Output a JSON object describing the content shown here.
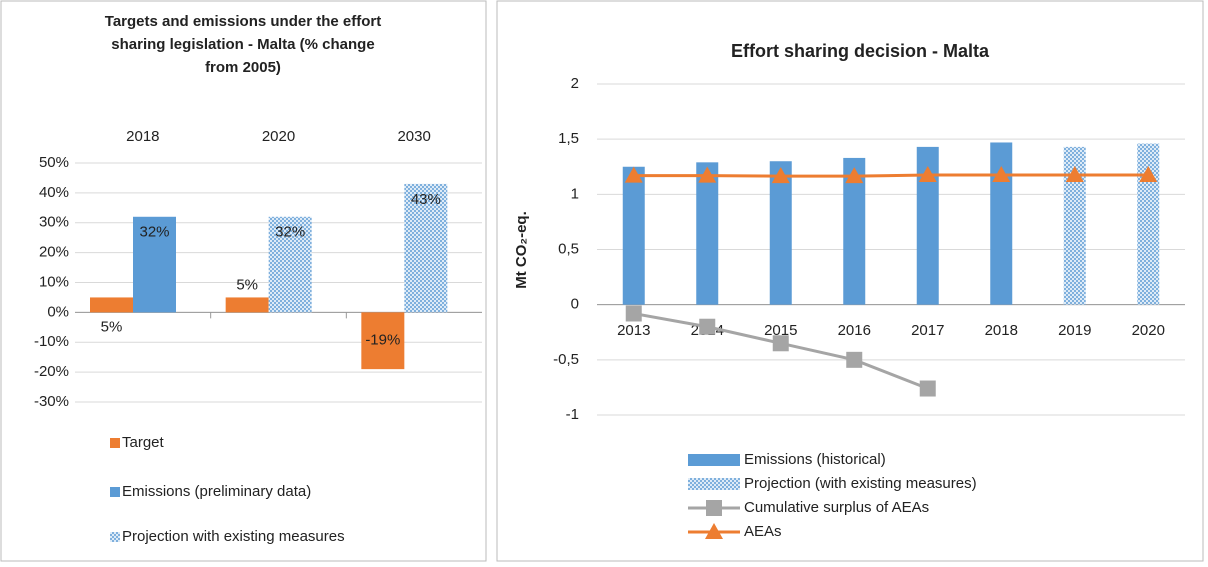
{
  "chart_data": [
    {
      "type": "bar",
      "title_lines": [
        "Targets and emissions under the effort",
        "sharing legislation -  Malta (% change",
        "from 2005)"
      ],
      "categories": [
        "2018",
        "2020",
        "2030"
      ],
      "series": [
        {
          "name": "Target",
          "color": "#ed7d31",
          "values": [
            5,
            5,
            -19
          ],
          "value_labels": [
            "5%",
            "5%",
            "-19%"
          ]
        },
        {
          "name": "Emissions (preliminary data)",
          "color": "#5b9bd5",
          "values": [
            32,
            null,
            null
          ],
          "value_labels": [
            "32%",
            null,
            null
          ]
        },
        {
          "name": "Projection with existing measures",
          "color": "#9dc3e6",
          "pattern": true,
          "values": [
            null,
            32,
            43
          ],
          "value_labels": [
            null,
            "32%",
            "43%"
          ]
        }
      ],
      "ylim": [
        -30,
        50
      ],
      "yticks": [
        {
          "value": -30,
          "label": "-30%"
        },
        {
          "value": -20,
          "label": "-20%"
        },
        {
          "value": -10,
          "label": "-10%"
        },
        {
          "value": 0,
          "label": "0%"
        },
        {
          "value": 10,
          "label": "10%"
        },
        {
          "value": 20,
          "label": "20%"
        },
        {
          "value": 30,
          "label": "30%"
        },
        {
          "value": 40,
          "label": "40%"
        },
        {
          "value": 50,
          "label": "50%"
        }
      ],
      "grid": true
    },
    {
      "type": "bar-line",
      "title": "Effort sharing decision -  Malta",
      "ylabel": "Mt CO₂-eq.",
      "categories": [
        "2013",
        "2014",
        "2015",
        "2016",
        "2017",
        "2018",
        "2019",
        "2020"
      ],
      "series": [
        {
          "name": "Emissions (historical)",
          "kind": "bar",
          "color": "#5b9bd5",
          "values": [
            1.25,
            1.29,
            1.3,
            1.33,
            1.43,
            1.47,
            null,
            null
          ]
        },
        {
          "name": "Projection (with existing measures)",
          "kind": "bar",
          "color": "#9dc3e6",
          "pattern": true,
          "values": [
            null,
            null,
            null,
            null,
            null,
            null,
            1.43,
            1.46
          ]
        },
        {
          "name": "Cumulative surplus of AEAs",
          "kind": "line",
          "marker": "square",
          "color": "#a5a5a5",
          "values": [
            -0.08,
            -0.2,
            -0.35,
            -0.5,
            -0.76,
            null,
            null,
            null
          ]
        },
        {
          "name": "AEAs",
          "kind": "line",
          "marker": "triangle",
          "color": "#ed7d31",
          "values": [
            1.17,
            1.17,
            1.165,
            1.165,
            1.175,
            1.175,
            1.175,
            1.175
          ]
        }
      ],
      "ylim": [
        -1,
        2
      ],
      "yticks": [
        -1,
        {
          "value": -0.5,
          "label": "-0,5"
        },
        0,
        {
          "value": 0.5,
          "label": "0,5"
        },
        1,
        {
          "value": 1.5,
          "label": "1,5"
        },
        2
      ],
      "grid": true
    }
  ]
}
